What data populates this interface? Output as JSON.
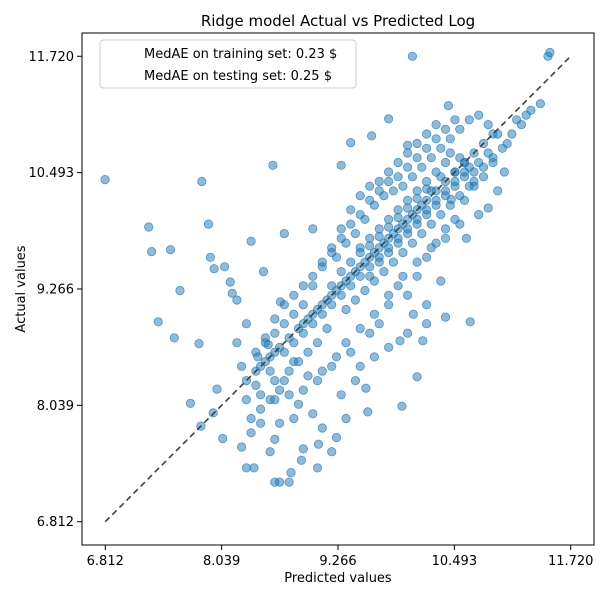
{
  "chart_data": {
    "type": "scatter",
    "title": "Ridge model Actual vs Predicted Log",
    "xlabel": "Predicted values",
    "ylabel": "Actual values",
    "xlim": [
      6.812,
      11.72
    ],
    "ylim": [
      6.812,
      11.72
    ],
    "xticks": [
      "6.812",
      "8.039",
      "9.266",
      "10.493",
      "11.720"
    ],
    "yticks": [
      "6.812",
      "8.039",
      "9.266",
      "10.493",
      "11.720"
    ],
    "legend": {
      "placement": "upper-left",
      "entries": [
        "MedAE on training set: 0.23 $",
        "MedAE on testing set: 0.25 $"
      ]
    },
    "reference_line": {
      "style": "dashed",
      "color": "#404040",
      "from": [
        6.812,
        6.812
      ],
      "to": [
        11.72,
        11.72
      ]
    },
    "point_color": "#1f77b4",
    "grid": false,
    "points": [
      [
        6.81,
        10.42
      ],
      [
        7.27,
        9.92
      ],
      [
        7.3,
        9.66
      ],
      [
        7.37,
        8.92
      ],
      [
        7.5,
        9.68
      ],
      [
        7.54,
        8.75
      ],
      [
        7.6,
        9.25
      ],
      [
        7.83,
        10.4
      ],
      [
        7.9,
        9.95
      ],
      [
        7.71,
        8.06
      ],
      [
        7.8,
        8.69
      ],
      [
        7.92,
        9.6
      ],
      [
        7.96,
        9.48
      ],
      [
        7.99,
        8.21
      ],
      [
        8.07,
        9.5
      ],
      [
        8.15,
        9.22
      ],
      [
        8.13,
        9.34
      ],
      [
        8.35,
        9.77
      ],
      [
        7.95,
        7.96
      ],
      [
        7.82,
        7.82
      ],
      [
        8.05,
        7.69
      ],
      [
        8.3,
        7.38
      ],
      [
        8.38,
        7.38
      ],
      [
        8.6,
        7.23
      ],
      [
        8.65,
        7.23
      ],
      [
        8.75,
        7.23
      ],
      [
        8.77,
        7.33
      ],
      [
        8.88,
        7.46
      ],
      [
        9.05,
        7.38
      ],
      [
        9.2,
        7.55
      ],
      [
        9.06,
        7.63
      ],
      [
        8.6,
        7.68
      ],
      [
        8.9,
        7.58
      ],
      [
        8.53,
        8.68
      ],
      [
        8.66,
        9.13
      ],
      [
        8.7,
        9.85
      ],
      [
        9.0,
        9.9
      ],
      [
        8.2,
        9.15
      ],
      [
        8.48,
        9.45
      ],
      [
        8.58,
        10.57
      ],
      [
        9.3,
        10.57
      ],
      [
        9.4,
        10.81
      ],
      [
        9.62,
        10.88
      ],
      [
        9.8,
        11.06
      ],
      [
        10.0,
        10.78
      ],
      [
        10.05,
        11.72
      ],
      [
        10.43,
        11.2
      ],
      [
        11.5,
        11.76
      ],
      [
        11.48,
        11.72
      ],
      [
        10.46,
        10.21
      ],
      [
        10.62,
        9.8
      ],
      [
        10.66,
        8.92
      ],
      [
        10.4,
        8.97
      ],
      [
        10.2,
        8.9
      ],
      [
        10.06,
        9.0
      ],
      [
        9.92,
        8.72
      ],
      [
        10.16,
        8.72
      ],
      [
        10.1,
        8.34
      ],
      [
        9.94,
        8.03
      ],
      [
        9.58,
        7.97
      ],
      [
        9.56,
        8.22
      ],
      [
        9.35,
        7.9
      ],
      [
        9.25,
        7.7
      ],
      [
        9.0,
        7.95
      ],
      [
        8.85,
        8.05
      ],
      [
        8.6,
        8.1
      ],
      [
        8.4,
        8.25
      ],
      [
        8.25,
        8.45
      ],
      [
        8.2,
        8.7
      ],
      [
        8.3,
        8.9
      ],
      [
        8.42,
        8.55
      ],
      [
        8.55,
        8.4
      ],
      [
        8.7,
        8.3
      ],
      [
        8.8,
        8.5
      ],
      [
        8.95,
        8.35
      ],
      [
        9.1,
        8.4
      ],
      [
        9.25,
        8.55
      ],
      [
        9.4,
        8.6
      ],
      [
        9.5,
        8.45
      ],
      [
        9.6,
        8.8
      ],
      [
        9.7,
        8.9
      ],
      [
        9.8,
        9.1
      ],
      [
        9.9,
        9.3
      ],
      [
        10.0,
        9.2
      ],
      [
        10.1,
        9.4
      ],
      [
        10.2,
        9.6
      ],
      [
        10.3,
        9.75
      ],
      [
        10.4,
        9.9
      ],
      [
        10.5,
        10.0
      ],
      [
        10.6,
        10.2
      ],
      [
        10.7,
        10.35
      ],
      [
        10.8,
        10.45
      ],
      [
        10.9,
        10.6
      ],
      [
        11.0,
        10.75
      ],
      [
        11.1,
        10.9
      ],
      [
        11.2,
        11.0
      ],
      [
        11.3,
        11.15
      ],
      [
        11.4,
        11.22
      ],
      [
        11.02,
        10.5
      ],
      [
        10.95,
        10.3
      ],
      [
        10.85,
        10.12
      ],
      [
        10.75,
        10.05
      ],
      [
        10.65,
        10.55
      ],
      [
        10.55,
        10.65
      ],
      [
        10.45,
        10.7
      ],
      [
        10.35,
        10.45
      ],
      [
        10.25,
        10.3
      ],
      [
        10.15,
        10.15
      ],
      [
        10.05,
        10.05
      ],
      [
        9.95,
        9.95
      ],
      [
        9.85,
        9.85
      ],
      [
        9.75,
        9.75
      ],
      [
        9.65,
        9.65
      ],
      [
        9.55,
        9.55
      ],
      [
        9.45,
        9.45
      ],
      [
        9.35,
        9.35
      ],
      [
        9.25,
        9.25
      ],
      [
        9.15,
        9.15
      ],
      [
        9.05,
        9.05
      ],
      [
        8.95,
        8.95
      ],
      [
        8.85,
        8.85
      ],
      [
        8.75,
        8.75
      ],
      [
        8.65,
        8.65
      ],
      [
        8.55,
        8.55
      ],
      [
        8.45,
        8.45
      ],
      [
        9.0,
        9.3
      ],
      [
        9.1,
        9.5
      ],
      [
        9.2,
        9.7
      ],
      [
        9.3,
        9.9
      ],
      [
        9.4,
        10.1
      ],
      [
        9.5,
        10.25
      ],
      [
        9.6,
        10.35
      ],
      [
        9.7,
        10.4
      ],
      [
        9.8,
        10.5
      ],
      [
        9.9,
        10.6
      ],
      [
        10.0,
        10.7
      ],
      [
        10.1,
        10.8
      ],
      [
        10.2,
        10.9
      ],
      [
        10.3,
        11.0
      ],
      [
        9.35,
        9.05
      ],
      [
        9.45,
        9.15
      ],
      [
        9.55,
        9.25
      ],
      [
        9.65,
        9.35
      ],
      [
        9.75,
        9.45
      ],
      [
        9.85,
        9.55
      ],
      [
        9.95,
        9.65
      ],
      [
        10.05,
        9.75
      ],
      [
        10.15,
        9.85
      ],
      [
        10.25,
        9.95
      ],
      [
        10.35,
        10.05
      ],
      [
        10.45,
        10.15
      ],
      [
        10.55,
        10.25
      ],
      [
        10.65,
        10.35
      ],
      [
        10.75,
        10.6
      ],
      [
        10.85,
        10.7
      ],
      [
        9.15,
        8.85
      ],
      [
        9.05,
        8.7
      ],
      [
        8.95,
        8.6
      ],
      [
        8.85,
        8.5
      ],
      [
        8.75,
        8.4
      ],
      [
        8.65,
        8.2
      ],
      [
        8.55,
        8.1
      ],
      [
        8.45,
        8.0
      ],
      [
        8.35,
        7.9
      ],
      [
        8.9,
        9.1
      ],
      [
        8.8,
        9.0
      ],
      [
        8.7,
        8.9
      ],
      [
        8.6,
        8.8
      ],
      [
        8.5,
        8.7
      ],
      [
        9.25,
        9.6
      ],
      [
        9.35,
        9.75
      ],
      [
        9.45,
        9.85
      ],
      [
        9.55,
        10.0
      ],
      [
        9.65,
        10.15
      ],
      [
        9.75,
        10.25
      ],
      [
        9.85,
        10.3
      ],
      [
        9.95,
        10.35
      ],
      [
        10.05,
        10.45
      ],
      [
        10.15,
        10.55
      ],
      [
        10.25,
        10.65
      ],
      [
        10.35,
        10.75
      ],
      [
        10.45,
        10.85
      ],
      [
        10.55,
        10.95
      ],
      [
        10.65,
        11.05
      ],
      [
        10.75,
        11.1
      ],
      [
        10.85,
        11.0
      ],
      [
        10.95,
        10.9
      ],
      [
        11.05,
        10.8
      ],
      [
        11.15,
        11.05
      ],
      [
        11.25,
        11.1
      ],
      [
        9.6,
        9.4
      ],
      [
        9.7,
        9.55
      ],
      [
        9.8,
        9.65
      ],
      [
        9.9,
        9.75
      ],
      [
        10.0,
        9.85
      ],
      [
        10.1,
        9.95
      ],
      [
        10.2,
        10.05
      ],
      [
        10.3,
        10.15
      ],
      [
        10.4,
        10.25
      ],
      [
        10.5,
        10.35
      ],
      [
        10.6,
        10.45
      ],
      [
        10.7,
        10.5
      ],
      [
        9.5,
        9.7
      ],
      [
        9.6,
        9.8
      ],
      [
        9.7,
        9.9
      ],
      [
        9.8,
        10.0
      ],
      [
        9.9,
        10.1
      ],
      [
        10.0,
        10.2
      ],
      [
        10.1,
        10.3
      ],
      [
        10.2,
        10.4
      ],
      [
        10.3,
        10.5
      ],
      [
        10.4,
        10.6
      ],
      [
        10.5,
        10.5
      ],
      [
        10.6,
        10.6
      ],
      [
        9.2,
        9.3
      ],
      [
        9.3,
        9.45
      ],
      [
        9.4,
        9.55
      ],
      [
        9.5,
        9.65
      ],
      [
        9.6,
        9.72
      ],
      [
        9.7,
        9.82
      ],
      [
        9.8,
        9.92
      ],
      [
        9.9,
        10.02
      ],
      [
        10.0,
        10.12
      ],
      [
        10.1,
        10.22
      ],
      [
        10.2,
        10.32
      ],
      [
        8.9,
        8.9
      ],
      [
        9.0,
        9.0
      ],
      [
        9.1,
        9.1
      ],
      [
        9.2,
        9.2
      ],
      [
        9.3,
        9.3
      ],
      [
        9.4,
        9.4
      ],
      [
        9.5,
        9.5
      ],
      [
        9.6,
        9.6
      ],
      [
        9.7,
        9.7
      ],
      [
        9.8,
        9.8
      ],
      [
        9.9,
        9.9
      ],
      [
        10.0,
        10.0
      ],
      [
        10.1,
        10.1
      ],
      [
        10.2,
        10.2
      ],
      [
        10.3,
        10.3
      ],
      [
        10.4,
        10.4
      ],
      [
        10.5,
        10.5
      ],
      [
        10.6,
        10.6
      ],
      [
        10.7,
        10.7
      ],
      [
        10.8,
        10.8
      ],
      [
        10.9,
        10.9
      ],
      [
        8.7,
        8.6
      ],
      [
        8.8,
        8.7
      ],
      [
        8.9,
        8.8
      ],
      [
        9.0,
        8.9
      ],
      [
        9.1,
        9.0
      ],
      [
        9.2,
        9.1
      ],
      [
        9.3,
        9.2
      ],
      [
        9.4,
        9.3
      ],
      [
        9.5,
        9.4
      ],
      [
        9.6,
        9.5
      ],
      [
        9.7,
        9.6
      ],
      [
        9.8,
        9.7
      ],
      [
        9.9,
        9.8
      ],
      [
        10.0,
        9.9
      ],
      [
        10.1,
        10.0
      ],
      [
        10.2,
        10.1
      ],
      [
        10.3,
        10.2
      ],
      [
        10.4,
        10.3
      ],
      [
        10.5,
        10.4
      ],
      [
        10.6,
        10.5
      ],
      [
        10.7,
        10.4
      ],
      [
        10.8,
        10.55
      ],
      [
        10.9,
        10.65
      ],
      [
        8.4,
        8.6
      ],
      [
        8.5,
        8.75
      ],
      [
        8.6,
        8.95
      ],
      [
        8.7,
        9.1
      ],
      [
        8.8,
        9.2
      ],
      [
        8.9,
        9.3
      ],
      [
        9.0,
        9.4
      ],
      [
        9.1,
        9.55
      ],
      [
        9.2,
        9.65
      ],
      [
        9.3,
        9.8
      ],
      [
        9.4,
        9.95
      ],
      [
        9.5,
        10.05
      ],
      [
        9.6,
        10.2
      ],
      [
        9.7,
        10.3
      ],
      [
        9.8,
        10.4
      ],
      [
        9.9,
        10.45
      ],
      [
        10.0,
        10.55
      ],
      [
        10.1,
        10.65
      ],
      [
        10.2,
        10.75
      ],
      [
        10.3,
        10.85
      ],
      [
        10.4,
        10.95
      ],
      [
        10.5,
        11.05
      ],
      [
        8.3,
        8.3
      ],
      [
        8.4,
        8.4
      ],
      [
        8.5,
        8.5
      ],
      [
        8.6,
        8.6
      ],
      [
        8.3,
        8.1
      ],
      [
        8.45,
        8.15
      ],
      [
        8.6,
        8.3
      ],
      [
        8.75,
        8.15
      ],
      [
        8.9,
        8.2
      ],
      [
        9.05,
        8.3
      ],
      [
        9.2,
        8.45
      ],
      [
        9.35,
        8.7
      ],
      [
        9.5,
        8.85
      ],
      [
        9.65,
        9.0
      ],
      [
        9.8,
        9.2
      ],
      [
        9.95,
        9.4
      ],
      [
        10.1,
        9.55
      ],
      [
        10.25,
        9.7
      ],
      [
        10.4,
        9.8
      ],
      [
        10.55,
        9.95
      ],
      [
        8.25,
        7.6
      ],
      [
        8.35,
        7.75
      ],
      [
        8.45,
        7.85
      ],
      [
        8.55,
        7.55
      ],
      [
        8.65,
        7.85
      ],
      [
        8.8,
        7.9
      ],
      [
        9.1,
        7.8
      ],
      [
        9.3,
        8.15
      ],
      [
        9.45,
        8.3
      ],
      [
        9.65,
        8.55
      ],
      [
        9.8,
        8.65
      ],
      [
        10.0,
        8.8
      ],
      [
        10.2,
        9.1
      ],
      [
        10.35,
        9.35
      ]
    ]
  }
}
